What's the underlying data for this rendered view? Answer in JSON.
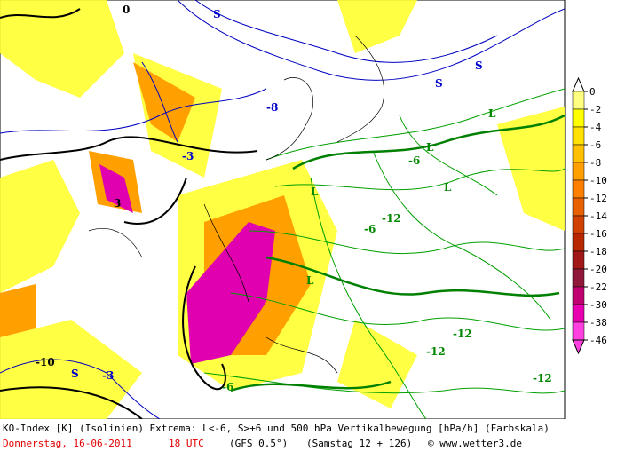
{
  "map": {
    "footer": {
      "line1": "KO-Index [K] (Isolinien) Extrema: L<-6, S>+6 und 500 hPa Vertikalbewegung [hPa/h] (Farbskala)",
      "date": "Donnerstag, 16-06-2011",
      "time": "18 UTC",
      "model": "(GFS 0.5°)",
      "run": "(Samstag 12 + 126)",
      "credit": "© www.wetter3.de"
    },
    "colorbar": {
      "levels": [
        0,
        -2,
        -4,
        -6,
        -8,
        -10,
        -12,
        -14,
        -16,
        -18,
        -20,
        -22,
        -30,
        -38,
        -46
      ],
      "colors": [
        "#ffff80",
        "#ffff00",
        "#ffe000",
        "#ffc000",
        "#ffa000",
        "#ff8000",
        "#e86000",
        "#d04000",
        "#b82800",
        "#a01818",
        "#901838",
        "#c00070",
        "#e800b0",
        "#ff40e0"
      ]
    },
    "labels": [
      "S",
      "S",
      "S",
      "S",
      "L",
      "L",
      "L",
      "L",
      "L",
      "-6",
      "-6",
      "-6",
      "-12",
      "-12",
      "-12",
      "-3",
      "3",
      "0",
      "-10",
      "-3",
      "-8",
      "-12"
    ]
  }
}
